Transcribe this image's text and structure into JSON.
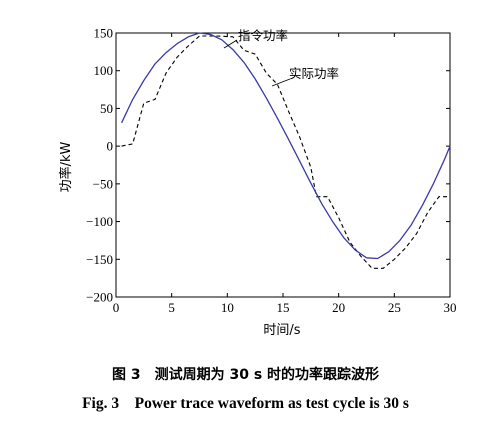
{
  "chart_data": {
    "type": "line",
    "xlabel": "时间/s",
    "ylabel": "功率/kW",
    "xlim": [
      0,
      30
    ],
    "ylim": [
      -200,
      150
    ],
    "xticks": [
      0,
      5,
      10,
      15,
      20,
      25,
      30
    ],
    "yticks": [
      -200,
      -150,
      -100,
      -50,
      0,
      50,
      100,
      150
    ],
    "grid": false,
    "series": [
      {
        "name": "指令功率",
        "style": "dashed",
        "color": "#000000",
        "points": [
          [
            0.5,
            0
          ],
          [
            1.5,
            3
          ],
          [
            2.5,
            57
          ],
          [
            3.5,
            62
          ],
          [
            4.5,
            97
          ],
          [
            5.5,
            118
          ],
          [
            6.5,
            133
          ],
          [
            7.5,
            146
          ],
          [
            9.0,
            146
          ],
          [
            10.5,
            145
          ],
          [
            11.5,
            127
          ],
          [
            12.5,
            122
          ],
          [
            13.5,
            97
          ],
          [
            14.5,
            82
          ],
          [
            15.5,
            46
          ],
          [
            16.5,
            12
          ],
          [
            17.5,
            -28
          ],
          [
            18.0,
            -67
          ],
          [
            19.0,
            -67
          ],
          [
            20.0,
            -95
          ],
          [
            21.0,
            -127
          ],
          [
            22.0,
            -146
          ],
          [
            23.0,
            -162
          ],
          [
            24.0,
            -162
          ],
          [
            25.0,
            -150
          ],
          [
            26.0,
            -135
          ],
          [
            27.0,
            -116
          ],
          [
            28.0,
            -88
          ],
          [
            29.0,
            -67
          ],
          [
            30.0,
            -67
          ]
        ]
      },
      {
        "name": "实际功率",
        "style": "solid",
        "color": "#3a3aa8",
        "points": [
          [
            0.5,
            31
          ],
          [
            1.5,
            62
          ],
          [
            2.5,
            87
          ],
          [
            3.5,
            109
          ],
          [
            4.5,
            124
          ],
          [
            5.5,
            136
          ],
          [
            6.5,
            145
          ],
          [
            7.5,
            150
          ],
          [
            8.5,
            148
          ],
          [
            9.5,
            141
          ],
          [
            10.5,
            128
          ],
          [
            11.5,
            111
          ],
          [
            12.5,
            89
          ],
          [
            13.5,
            64
          ],
          [
            14.5,
            37
          ],
          [
            15.5,
            9
          ],
          [
            16.5,
            -20
          ],
          [
            17.5,
            -49
          ],
          [
            18.5,
            -77
          ],
          [
            19.5,
            -101
          ],
          [
            20.5,
            -122
          ],
          [
            21.5,
            -138
          ],
          [
            22.5,
            -148
          ],
          [
            23.5,
            -149
          ],
          [
            24.5,
            -140
          ],
          [
            25.5,
            -125
          ],
          [
            26.5,
            -105
          ],
          [
            27.5,
            -79
          ],
          [
            28.5,
            -50
          ],
          [
            29.5,
            -18
          ],
          [
            30.0,
            0
          ]
        ]
      }
    ]
  },
  "captions": {
    "cn": "图 3　测试周期为 30 s 时的功率跟踪波形",
    "en": "Fig. 3　Power trace waveform as test cycle is 30 s"
  }
}
